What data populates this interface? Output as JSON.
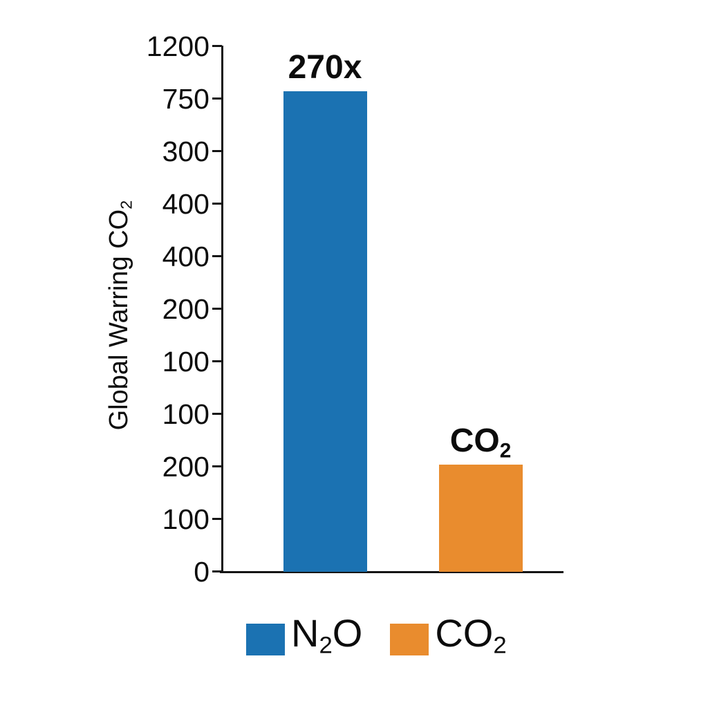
{
  "chart_data": {
    "type": "bar",
    "title": "",
    "ylabel_segments": [
      {
        "t": "Global Warring CO"
      },
      {
        "s": "2"
      }
    ],
    "xlabel": "",
    "grid": false,
    "legend_position": "bottom",
    "y_axis_ticks_top_to_bottom": [
      "1200",
      "750",
      "300",
      "400",
      "400",
      "200",
      "100",
      "100",
      "200",
      "100",
      "0"
    ],
    "series": [
      {
        "id": "n2o",
        "name": "N2O",
        "label_segments": [
          {
            "t": "N"
          },
          {
            "s": "2"
          },
          {
            "t": "O"
          }
        ],
        "annotation_segments": [
          {
            "t": "270x"
          }
        ],
        "color": "#1b72b2",
        "height_fraction": 0.914
      },
      {
        "id": "co2",
        "name": "CO2",
        "label_segments": [
          {
            "t": "CO"
          },
          {
            "s": "2"
          }
        ],
        "annotation_segments": [
          {
            "t": "CO"
          },
          {
            "s": "2"
          }
        ],
        "color": "#e98c2e",
        "height_fraction": 0.204
      }
    ],
    "colors": {
      "axis": "#141414",
      "text": "#0c0c0c",
      "background": "#ffffff"
    }
  }
}
